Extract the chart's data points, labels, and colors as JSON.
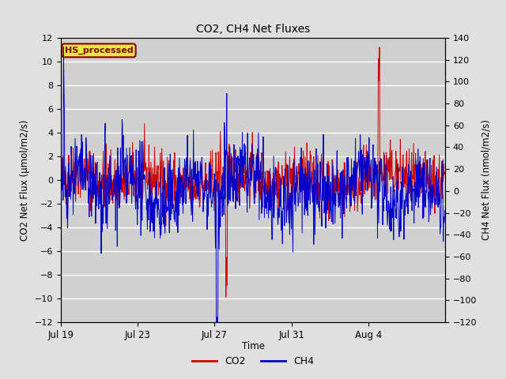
{
  "title": "CO2, CH4 Net Fluxes",
  "xlabel": "Time",
  "ylabel_left": "CO2 Net Flux (μmol/m2/s)",
  "ylabel_right": "CH4 Net Flux (nmol/m2/s)",
  "ylim_left": [
    -12,
    12
  ],
  "ylim_right": [
    -120,
    120
  ],
  "yticks_left": [
    -12,
    -10,
    -8,
    -6,
    -4,
    -2,
    0,
    2,
    4,
    6,
    8,
    10,
    12
  ],
  "yticks_right": [
    -120,
    -100,
    -80,
    -60,
    -40,
    -20,
    0,
    20,
    40,
    60,
    80,
    100,
    120,
    140
  ],
  "xtick_labels": [
    "Jul 19",
    "Jul 23",
    "Jul 27",
    "Jul 31",
    "Aug 4"
  ],
  "xtick_positions": [
    0,
    4,
    8,
    12,
    16
  ],
  "color_co2": "#cc0000",
  "color_ch4": "#0000cc",
  "fig_bg_color": "#e0e0e0",
  "plot_bg_color": "#d0d0d0",
  "grid_color": "#ffffff",
  "annotation_text": "HS_processed",
  "annotation_bg": "#e8e840",
  "annotation_fg": "#880000",
  "legend_co2": "CO2",
  "legend_ch4": "CH4",
  "seed": 42,
  "n_days": 20,
  "samples_per_day": 48,
  "linewidth": 0.7
}
